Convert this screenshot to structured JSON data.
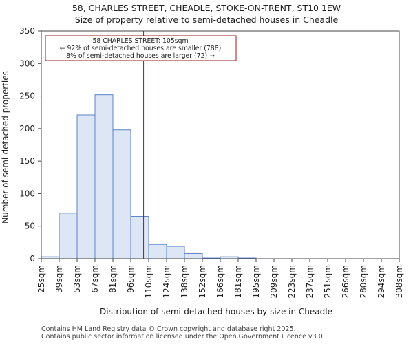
{
  "chart_data": {
    "type": "bar",
    "title": "58, CHARLES STREET, CHEADLE, STOKE-ON-TRENT, ST10 1EW",
    "subtitle": "Size of property relative to semi-detached houses in Cheadle",
    "xlabel": "Distribution of semi-detached houses by size in Cheadle",
    "ylabel": "Number of semi-detached properties",
    "categories": [
      "25sqm",
      "39sqm",
      "53sqm",
      "67sqm",
      "81sqm",
      "96sqm",
      "110sqm",
      "124sqm",
      "138sqm",
      "152sqm",
      "166sqm",
      "181sqm",
      "195sqm",
      "209sqm",
      "223sqm",
      "237sqm",
      "251sqm",
      "266sqm",
      "280sqm",
      "294sqm",
      "308sqm"
    ],
    "values": [
      3,
      70,
      221,
      252,
      198,
      65,
      22,
      19,
      8,
      1,
      3,
      1,
      0,
      0,
      0,
      0,
      0,
      0,
      0,
      0,
      1
    ],
    "ylim": [
      0,
      350
    ],
    "yticks": [
      0,
      50,
      100,
      150,
      200,
      250,
      300,
      350
    ],
    "marker": {
      "value_sqm": 105,
      "line1": "58 CHARLES STREET: 105sqm",
      "line2": "← 92% of semi-detached houses are smaller (788)",
      "line3": "8% of semi-detached houses are larger (72) →"
    },
    "colors": {
      "bar_fill": "#dce6f5",
      "bar_stroke": "#5b82c8",
      "marker": "#a01818"
    }
  },
  "footer": {
    "line1": "Contains HM Land Registry data © Crown copyright and database right 2025.",
    "line2": "Contains public sector information licensed under the Open Government Licence v3.0."
  }
}
